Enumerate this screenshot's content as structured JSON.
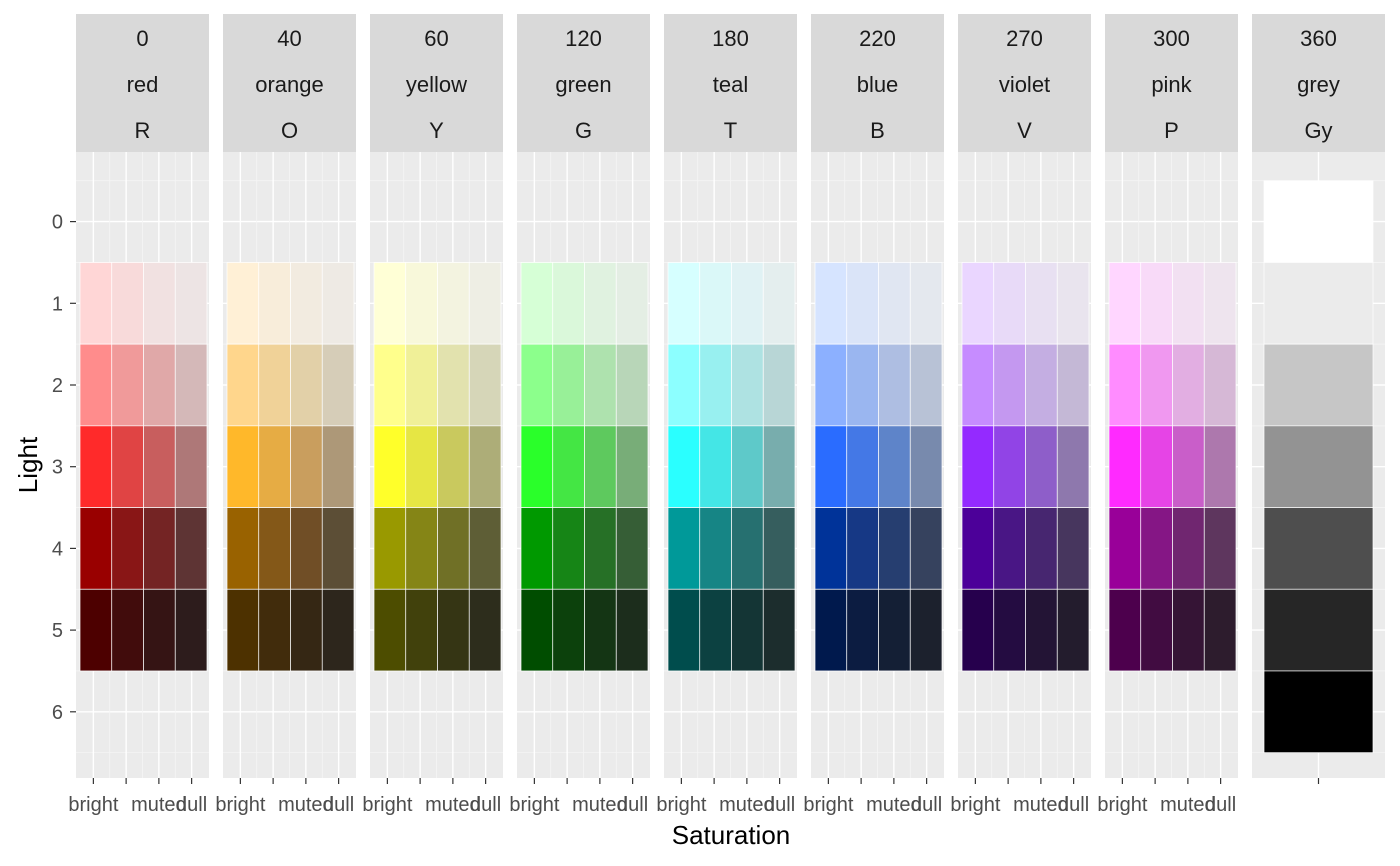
{
  "chart_data": {
    "type": "heatmap",
    "xlabel": "Saturation",
    "ylabel": "Light",
    "x_categories": [
      "bright",
      "",
      "muted",
      "dull"
    ],
    "y_ticks": [
      "0",
      "1",
      "2",
      "3",
      "4",
      "5",
      "6"
    ],
    "grid": true,
    "facets": [
      {
        "hue": "0",
        "name": "red",
        "code": "R",
        "rows": [
          [
            "#FFD6D6",
            "#F8DADA",
            "#F1E1E1",
            "#EDE4E4"
          ],
          [
            "#FF8C8C",
            "#F09A9A",
            "#E0A8A8",
            "#D4B8B8"
          ],
          [
            "#FF2A2A",
            "#E04444",
            "#C85E5E",
            "#AE7878"
          ],
          [
            "#990000",
            "#891616",
            "#742424",
            "#5E3434"
          ],
          [
            "#4D0000",
            "#410C0C",
            "#351414",
            "#2D1C1C"
          ]
        ]
      },
      {
        "hue": "40",
        "name": "orange",
        "code": "O",
        "rows": [
          [
            "#FFF0D6",
            "#F8EDDA",
            "#F2EBE0",
            "#EEEAE4"
          ],
          [
            "#FFD68C",
            "#F0D298",
            "#E2D0A8",
            "#D6CDB8"
          ],
          [
            "#FFB82A",
            "#E6AC44",
            "#C99E5E",
            "#AD9878"
          ],
          [
            "#996200",
            "#845818",
            "#704E26",
            "#5C4E36"
          ],
          [
            "#4D3100",
            "#412C0C",
            "#352714",
            "#2D261C"
          ]
        ]
      },
      {
        "hue": "60",
        "name": "yellow",
        "code": "Y",
        "rows": [
          [
            "#FFFFD6",
            "#F8F8DA",
            "#F3F3E0",
            "#EEEEE4"
          ],
          [
            "#FFFF8C",
            "#F0F098",
            "#E2E2AE",
            "#D6D6B8"
          ],
          [
            "#FFFF2A",
            "#E6E644",
            "#C9C95E",
            "#ADAD78"
          ],
          [
            "#999900",
            "#858516",
            "#707026",
            "#5E5E36"
          ],
          [
            "#4D4D00",
            "#41410C",
            "#353514",
            "#2D2D1C"
          ]
        ]
      },
      {
        "hue": "120",
        "name": "green",
        "code": "G",
        "rows": [
          [
            "#D6FFD6",
            "#DAF8DA",
            "#E0F2E0",
            "#E4EEE4"
          ],
          [
            "#8CFF8C",
            "#98F098",
            "#AEE2AE",
            "#B8D6B8"
          ],
          [
            "#2AFF2A",
            "#44E644",
            "#5EC95E",
            "#78AD78"
          ],
          [
            "#009900",
            "#168516",
            "#267026",
            "#365E36"
          ],
          [
            "#004D00",
            "#0C410C",
            "#143514",
            "#1C2D1C"
          ]
        ]
      },
      {
        "hue": "180",
        "name": "teal",
        "code": "T",
        "rows": [
          [
            "#D6FFFF",
            "#DAF8F8",
            "#E0F2F4",
            "#E4EEEE"
          ],
          [
            "#8CFFFF",
            "#98F0F0",
            "#AEE2E2",
            "#B8D6D6"
          ],
          [
            "#2AFFFF",
            "#44E6E6",
            "#5EC9C9",
            "#78ADAD"
          ],
          [
            "#009999",
            "#168585",
            "#267070",
            "#365E5E"
          ],
          [
            "#004D4D",
            "#0C4141",
            "#143535",
            "#1C2D2D"
          ]
        ]
      },
      {
        "hue": "220",
        "name": "blue",
        "code": "B",
        "rows": [
          [
            "#D6E4FF",
            "#DAE4F8",
            "#E0E6F2",
            "#E4E8EE"
          ],
          [
            "#8CB0FF",
            "#9AB6F0",
            "#AEBEE2",
            "#B8C2D6"
          ],
          [
            "#2A6CFF",
            "#4478E6",
            "#5E84C9",
            "#788AAD"
          ],
          [
            "#003399",
            "#163885",
            "#263E70",
            "#36425E"
          ],
          [
            "#00194D",
            "#0C1C41",
            "#141F35",
            "#1C212D"
          ]
        ]
      },
      {
        "hue": "270",
        "name": "violet",
        "code": "V",
        "rows": [
          [
            "#EAD6FF",
            "#E8DAF8",
            "#E8E0F2",
            "#E9E4EE"
          ],
          [
            "#C68CFF",
            "#C498F0",
            "#C4AEE2",
            "#C4B8D6"
          ],
          [
            "#942AFF",
            "#9144E6",
            "#8E5EC9",
            "#8E78AD"
          ],
          [
            "#4C0099",
            "#491685",
            "#472670",
            "#47365E"
          ],
          [
            "#26004D",
            "#240C41",
            "#231435",
            "#231C2D"
          ]
        ]
      },
      {
        "hue": "300",
        "name": "pink",
        "code": "P",
        "rows": [
          [
            "#FFD6FF",
            "#F8DAF8",
            "#F2E0F2",
            "#EEE4EE"
          ],
          [
            "#FF8CFF",
            "#F098F0",
            "#E2AEE2",
            "#D6B8D6"
          ],
          [
            "#FF2AFF",
            "#E644E6",
            "#C95EC9",
            "#AD78AD"
          ],
          [
            "#990099",
            "#851685",
            "#702670",
            "#5E365E"
          ],
          [
            "#4D004D",
            "#410C41",
            "#351435",
            "#2D1C2D"
          ]
        ]
      },
      {
        "hue": "360",
        "name": "grey",
        "code": "Gy",
        "rows": [
          [
            "#FFFFFF"
          ],
          [
            "#EBEBEB"
          ],
          [
            "#C6C6C6"
          ],
          [
            "#939393"
          ],
          [
            "#4E4E4E"
          ],
          [
            "#262626"
          ],
          [
            "#000000"
          ]
        ]
      }
    ]
  }
}
